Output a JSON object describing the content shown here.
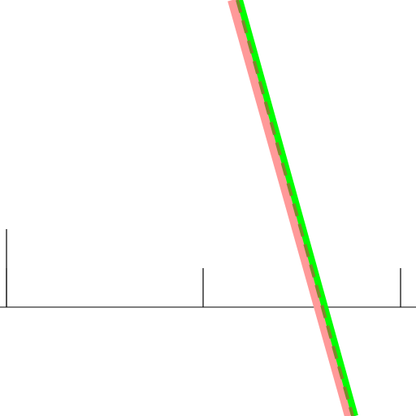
{
  "canvas": {
    "background": "#ffffff"
  },
  "axis": {
    "color": "#555555",
    "tick_color": "#000000"
  },
  "lines": [
    {
      "id": "salmon-band",
      "color": "#ff9999",
      "style": "solid"
    },
    {
      "id": "green-line",
      "color": "#00ff00",
      "style": "solid"
    },
    {
      "id": "olive-dashed-line",
      "color": "#7a8a2a",
      "style": "dashed"
    }
  ]
}
